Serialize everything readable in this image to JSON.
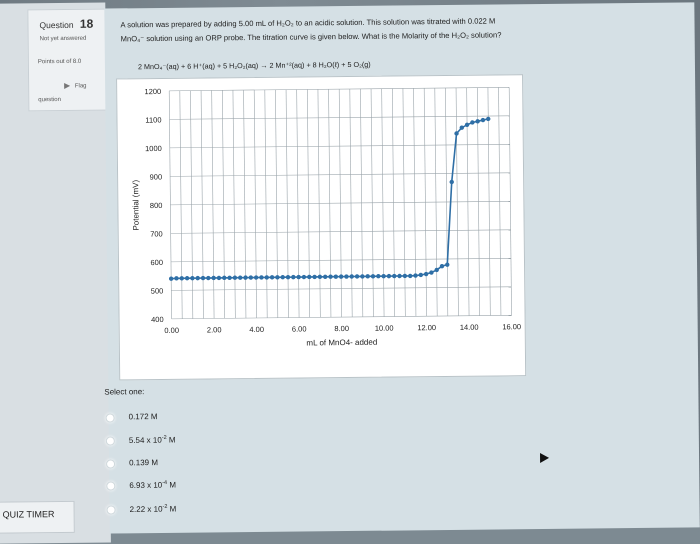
{
  "question": {
    "label": "Question",
    "number": "18",
    "status": "Not yet answered",
    "points": "Points out of 8.0",
    "flag": "Flag",
    "flag_sub": "question"
  },
  "prompt": {
    "line1": "A solution was prepared by adding 5.00 mL of H₂O₂ to an acidic solution.  This solution was titrated with 0.022 M",
    "line2": "MnO₄⁻ solution using an ORP probe.  The titration curve is given below.  What is the Molarity of the H₂O₂ solution?",
    "equation": "2 MnO₄⁻(aq)  +  6 H⁺(aq)  +  5 H₂O₂(aq)   →   2 Mn⁺²(aq)  +  8 H₂O(ℓ)  +  5 O₂(g)"
  },
  "chart_data": {
    "type": "scatter",
    "xlabel": "mL of MnO4- added",
    "ylabel": "Potential (mV)",
    "xlim": [
      0,
      16
    ],
    "ylim": [
      400,
      1200
    ],
    "xticks": [
      "0.00",
      "2.00",
      "4.00",
      "6.00",
      "8.00",
      "10.00",
      "12.00",
      "14.00",
      "16.00"
    ],
    "yticks": [
      "400",
      "500",
      "600",
      "700",
      "800",
      "900",
      "1000",
      "1100",
      "1200"
    ],
    "grid": true,
    "x": [
      0.0,
      0.25,
      0.5,
      0.75,
      1.0,
      1.25,
      1.5,
      1.75,
      2.0,
      2.25,
      2.5,
      2.75,
      3.0,
      3.25,
      3.5,
      3.75,
      4.0,
      4.25,
      4.5,
      4.75,
      5.0,
      5.25,
      5.5,
      5.75,
      6.0,
      6.25,
      6.5,
      6.75,
      7.0,
      7.25,
      7.5,
      7.75,
      8.0,
      8.25,
      8.5,
      8.75,
      9.0,
      9.25,
      9.5,
      9.75,
      10.0,
      10.25,
      10.5,
      10.75,
      11.0,
      11.25,
      11.5,
      11.75,
      12.0,
      12.25,
      12.5,
      12.75,
      13.0,
      13.25,
      13.5,
      13.75,
      14.0,
      14.25,
      14.5,
      14.75,
      15.0
    ],
    "y": [
      541,
      542,
      542,
      542,
      542,
      542,
      542,
      542,
      542,
      542,
      542,
      542,
      542,
      542,
      542,
      542,
      542,
      542,
      542,
      542,
      542,
      542,
      542,
      542,
      542,
      542,
      542,
      542,
      542,
      542,
      542,
      542,
      542,
      542,
      542,
      542,
      542,
      542,
      542,
      542,
      542,
      542,
      542,
      542,
      542,
      542,
      543,
      545,
      548,
      553,
      562,
      575,
      580,
      870,
      1040,
      1060,
      1070,
      1078,
      1082,
      1086,
      1090
    ]
  },
  "select_label": "Select one:",
  "options": [
    {
      "base": "0.172 M",
      "sup": "",
      "unit": ""
    },
    {
      "base": "5.54 x 10",
      "sup": "-2",
      "unit": " M"
    },
    {
      "base": "0.139 M",
      "sup": "",
      "unit": ""
    },
    {
      "base": "6.93 x 10",
      "sup": "-4",
      "unit": " M"
    },
    {
      "base": "2.22 x 10",
      "sup": "-2",
      "unit": " M"
    }
  ],
  "timer": "QUIZ TIMER",
  "colors": {
    "series": "#2f6fa6",
    "grid": "#9aa4aa",
    "panel": "#d5e0e5"
  }
}
